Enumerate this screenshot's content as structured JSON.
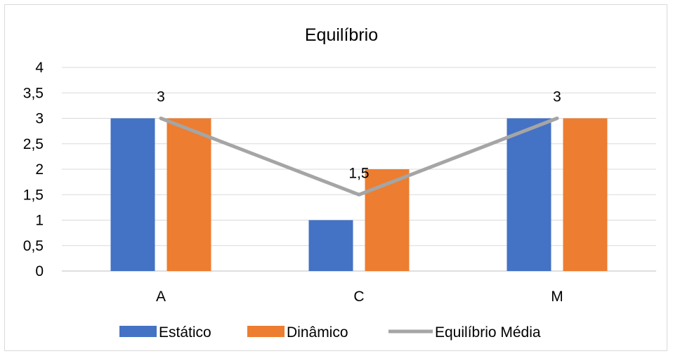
{
  "chart_data": {
    "type": "bar",
    "title": "Equilíbrio",
    "categories": [
      "A",
      "C",
      "M"
    ],
    "ylim": [
      0,
      4
    ],
    "y_ticks": [
      "0",
      "0,5",
      "1",
      "1,5",
      "2",
      "2,5",
      "3",
      "3,5",
      "4"
    ],
    "y_tick_values": [
      0,
      0.5,
      1,
      1.5,
      2,
      2.5,
      3,
      3.5,
      4
    ],
    "grid": true,
    "legend_position": "bottom",
    "series": [
      {
        "name": "Estático",
        "type": "bar",
        "color": "#4472c4",
        "values": [
          3,
          1,
          3
        ]
      },
      {
        "name": "Dinâmico",
        "type": "bar",
        "color": "#ed7d31",
        "values": [
          3,
          2,
          3
        ]
      },
      {
        "name": "Equilíbrio Média",
        "type": "line",
        "color": "#a5a5a5",
        "values": [
          3,
          1.5,
          3
        ],
        "data_labels": [
          "3",
          "1,5",
          "3"
        ]
      }
    ]
  }
}
